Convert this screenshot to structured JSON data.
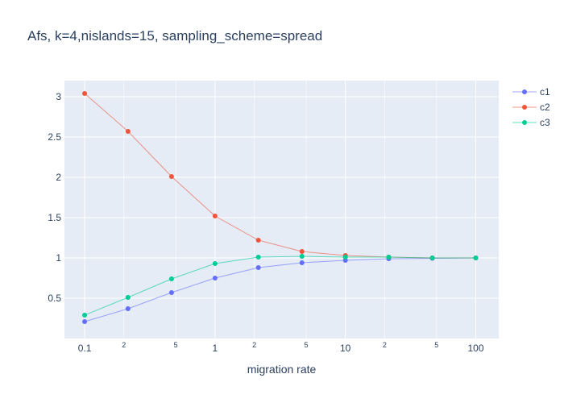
{
  "chart_data": {
    "type": "line",
    "title": "Afs, k=4,nislands=15, sampling_scheme=spread",
    "xlabel": "migration rate",
    "ylabel": "",
    "x_scale": "log",
    "xlim": [
      0.07,
      150
    ],
    "ylim": [
      0.0,
      3.2
    ],
    "x": [
      0.1,
      0.215,
      0.464,
      1,
      2.15,
      4.64,
      10,
      21.5,
      46.4,
      100
    ],
    "x_major_ticks": [
      0.1,
      1,
      10,
      100
    ],
    "x_major_tick_labels": [
      "0.1",
      "1",
      "10",
      "100"
    ],
    "x_minor_ticks": [
      0.2,
      0.5,
      2,
      5,
      20,
      50
    ],
    "x_minor_tick_labels": [
      "2",
      "5",
      "2",
      "5",
      "2",
      "5"
    ],
    "y_ticks": [
      0.5,
      1,
      1.5,
      2,
      2.5,
      3
    ],
    "y_tick_labels": [
      "0.5",
      "1",
      "1.5",
      "2",
      "2.5",
      "3"
    ],
    "grid": true,
    "legend_position": "top-right",
    "series": [
      {
        "name": "c1",
        "color": "#636efa",
        "values": [
          0.21,
          0.37,
          0.57,
          0.75,
          0.88,
          0.94,
          0.97,
          0.99,
          0.995,
          1.0
        ]
      },
      {
        "name": "c2",
        "color": "#ef553b",
        "values": [
          3.04,
          2.57,
          2.01,
          1.52,
          1.22,
          1.08,
          1.03,
          1.01,
          1.0,
          1.0
        ]
      },
      {
        "name": "c3",
        "color": "#00cc96",
        "values": [
          0.29,
          0.51,
          0.74,
          0.93,
          1.01,
          1.02,
          1.01,
          1.01,
          1.0,
          1.0
        ]
      }
    ]
  }
}
